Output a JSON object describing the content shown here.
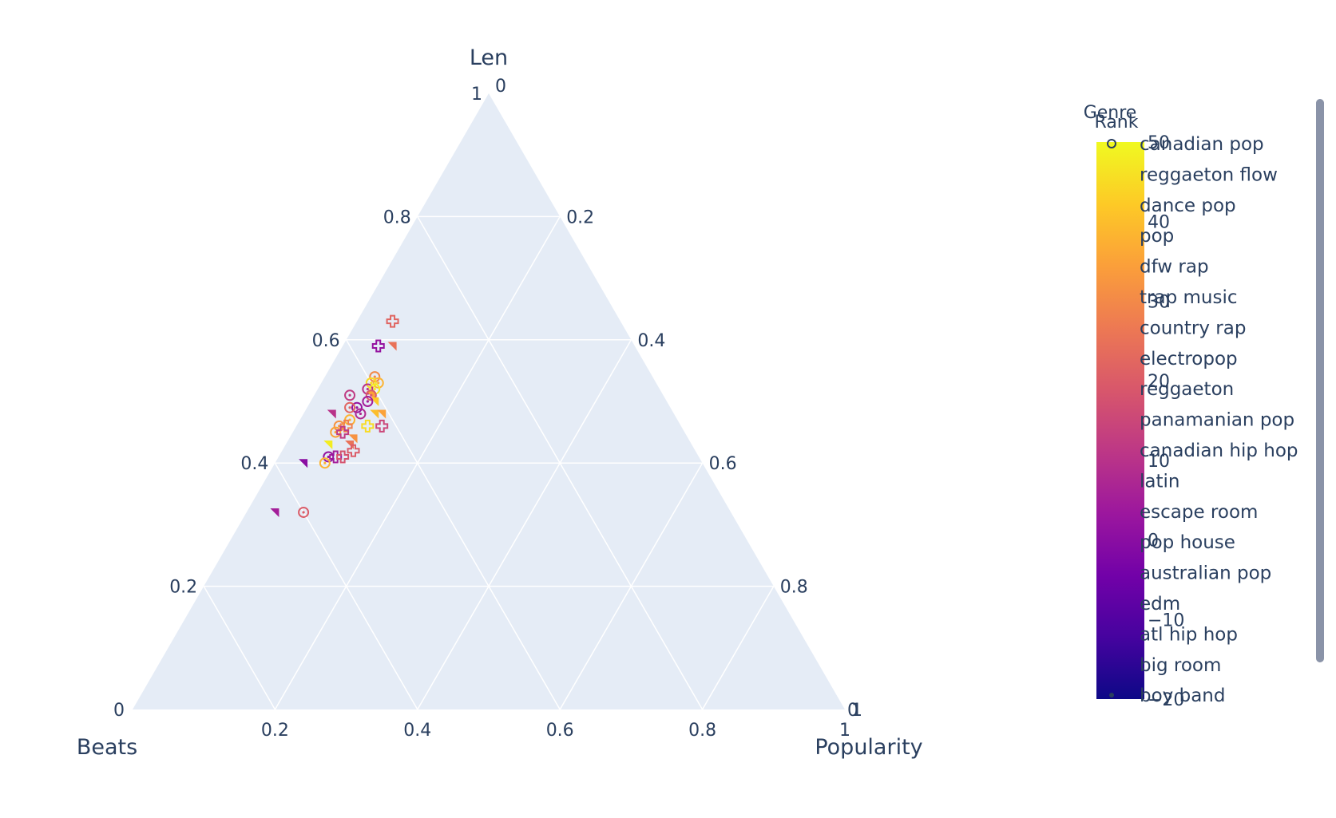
{
  "chart_data": {
    "type": "ternary-scatter",
    "axes": {
      "a": {
        "title": "Len",
        "ticks": [
          "0.2",
          "0.4",
          "0.6",
          "0.8",
          "1"
        ]
      },
      "b": {
        "title": "Beats",
        "ticks": [
          "0.2",
          "0.4",
          "0.6",
          "0.8",
          "1"
        ]
      },
      "c": {
        "title": "Popularity",
        "ticks": [
          "0.2",
          "0.4",
          "0.6",
          "0.8",
          "1"
        ]
      }
    },
    "corner_labels": {
      "top_c": "0",
      "left_a": "0",
      "right_b": "0"
    },
    "grid": true,
    "colorbar": {
      "title": "Rank",
      "ticks": [
        "50",
        "40",
        "30",
        "20",
        "10",
        "0",
        "−10",
        "−20"
      ],
      "range": [
        -20,
        50
      ],
      "colorscale": [
        "#0d0887",
        "#46039f",
        "#7201a8",
        "#9c179e",
        "#bd3786",
        "#d8576b",
        "#ed7953",
        "#fb9f3a",
        "#fdca26",
        "#f0f921"
      ]
    },
    "legend": {
      "title": "Genre",
      "position": "right",
      "entries": [
        "canadian pop",
        "reggaeton flow",
        "dance pop",
        "pop",
        "dfw rap",
        "trap music",
        "country rap",
        "electropop",
        "reggaeton",
        "panamanian pop",
        "canadian hip hop",
        "latin",
        "escape room",
        "pop house",
        "australian pop",
        "edm",
        "atl hip hop",
        "big room",
        "boy band"
      ]
    },
    "points": [
      {
        "a": 0.63,
        "b": 0.32,
        "c": 0.05,
        "rank": 22,
        "symbol": "cross"
      },
      {
        "a": 0.59,
        "b": 0.36,
        "c": 0.05,
        "rank": 2,
        "symbol": "cross"
      },
      {
        "a": 0.59,
        "b": 0.34,
        "c": 0.07,
        "rank": 25,
        "symbol": "tri"
      },
      {
        "a": 0.54,
        "b": 0.39,
        "c": 0.07,
        "rank": 30,
        "symbol": "circle"
      },
      {
        "a": 0.53,
        "b": 0.39,
        "c": 0.08,
        "rank": 38,
        "symbol": "circle"
      },
      {
        "a": 0.53,
        "b": 0.4,
        "c": 0.07,
        "rank": 45,
        "symbol": "circle"
      },
      {
        "a": 0.52,
        "b": 0.41,
        "c": 0.07,
        "rank": 10,
        "symbol": "circle"
      },
      {
        "a": 0.52,
        "b": 0.4,
        "c": 0.08,
        "rank": 48,
        "symbol": "circle"
      },
      {
        "a": 0.51,
        "b": 0.44,
        "c": 0.05,
        "rank": 12,
        "symbol": "circle"
      },
      {
        "a": 0.51,
        "b": 0.41,
        "c": 0.08,
        "rank": 35,
        "symbol": "tri"
      },
      {
        "a": 0.51,
        "b": 0.41,
        "c": 0.08,
        "rank": 20,
        "symbol": "circle"
      },
      {
        "a": 0.5,
        "b": 0.41,
        "c": 0.09,
        "rank": 42,
        "symbol": "tri"
      },
      {
        "a": 0.5,
        "b": 0.42,
        "c": 0.08,
        "rank": 5,
        "symbol": "circle"
      },
      {
        "a": 0.49,
        "b": 0.44,
        "c": 0.07,
        "rank": 2,
        "symbol": "circle"
      },
      {
        "a": 0.49,
        "b": 0.45,
        "c": 0.06,
        "rank": 22,
        "symbol": "circle"
      },
      {
        "a": 0.48,
        "b": 0.42,
        "c": 0.1,
        "rank": 40,
        "symbol": "tri"
      },
      {
        "a": 0.48,
        "b": 0.41,
        "c": 0.11,
        "rank": 35,
        "symbol": "tri"
      },
      {
        "a": 0.48,
        "b": 0.44,
        "c": 0.08,
        "rank": 8,
        "symbol": "circle"
      },
      {
        "a": 0.48,
        "b": 0.48,
        "c": 0.04,
        "rank": 10,
        "symbol": "tri"
      },
      {
        "a": 0.47,
        "b": 0.46,
        "c": 0.07,
        "rank": 38,
        "symbol": "circle"
      },
      {
        "a": 0.46,
        "b": 0.42,
        "c": 0.12,
        "rank": 15,
        "symbol": "cross"
      },
      {
        "a": 0.46,
        "b": 0.47,
        "c": 0.07,
        "rank": 28,
        "symbol": "cross"
      },
      {
        "a": 0.46,
        "b": 0.44,
        "c": 0.1,
        "rank": 45,
        "symbol": "cross"
      },
      {
        "a": 0.46,
        "b": 0.48,
        "c": 0.06,
        "rank": 32,
        "symbol": "circle"
      },
      {
        "a": 0.45,
        "b": 0.49,
        "c": 0.06,
        "rank": 35,
        "symbol": "circle"
      },
      {
        "a": 0.45,
        "b": 0.48,
        "c": 0.07,
        "rank": 12,
        "symbol": "cross"
      },
      {
        "a": 0.44,
        "b": 0.47,
        "c": 0.09,
        "rank": 32,
        "symbol": "tri"
      },
      {
        "a": 0.43,
        "b": 0.51,
        "c": 0.06,
        "rank": 48,
        "symbol": "tri"
      },
      {
        "a": 0.43,
        "b": 0.48,
        "c": 0.09,
        "rank": 25,
        "symbol": "tri"
      },
      {
        "a": 0.42,
        "b": 0.48,
        "c": 0.1,
        "rank": 20,
        "symbol": "cross"
      },
      {
        "a": 0.41,
        "b": 0.51,
        "c": 0.08,
        "rank": 5,
        "symbol": "cross"
      },
      {
        "a": 0.41,
        "b": 0.5,
        "c": 0.09,
        "rank": 18,
        "symbol": "cross"
      },
      {
        "a": 0.41,
        "b": 0.52,
        "c": 0.07,
        "rank": 2,
        "symbol": "circle"
      },
      {
        "a": 0.4,
        "b": 0.53,
        "c": 0.07,
        "rank": 38,
        "symbol": "circle"
      },
      {
        "a": 0.4,
        "b": 0.56,
        "c": 0.04,
        "rank": 0,
        "symbol": "tri"
      },
      {
        "a": 0.32,
        "b": 0.6,
        "c": 0.08,
        "rank": 20,
        "symbol": "circle"
      },
      {
        "a": 0.32,
        "b": 0.64,
        "c": 0.04,
        "rank": 5,
        "symbol": "tri"
      }
    ]
  }
}
